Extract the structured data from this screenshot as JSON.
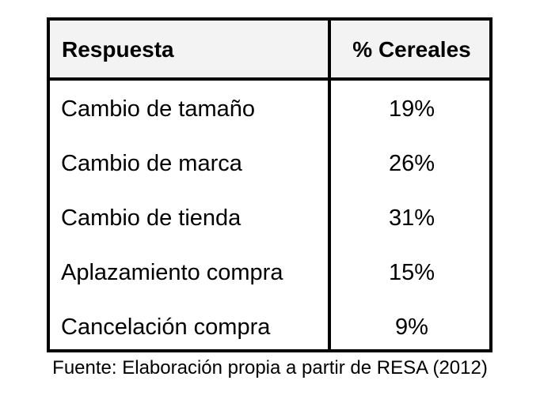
{
  "table": {
    "headers": [
      "Respuesta",
      "% Cereales"
    ],
    "rows": [
      [
        "Cambio de tamaño",
        "19%"
      ],
      [
        "Cambio de marca",
        "26%"
      ],
      [
        "Cambio de tienda",
        "31%"
      ],
      [
        "Aplazamiento compra",
        "15%"
      ],
      [
        "Cancelación compra",
        "9%"
      ]
    ]
  },
  "source": "Fuente: Elaboración propia a partir de RESA (2012)"
}
